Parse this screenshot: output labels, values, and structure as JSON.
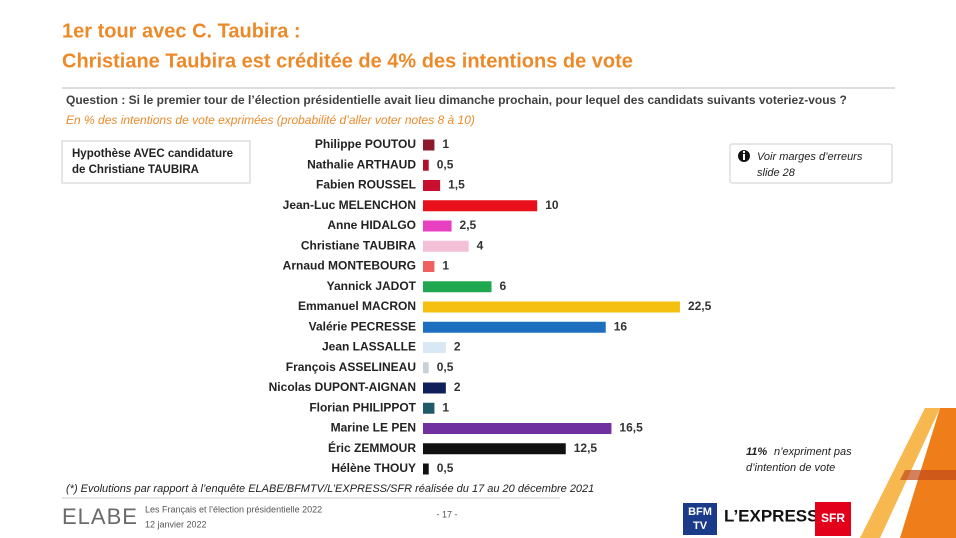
{
  "slide": {
    "title": [
      "1er tour avec C. Taubira :",
      "Christiane Taubira est créditée de 4% des intentions de vote"
    ],
    "question": "Question : Si le premier tour de l’élection présidentielle avait lieu dimanche prochain, pour lequel des candidats suivants voteriez-vous ?",
    "note": "En % des intentions de vote exprimées (probabilité d’aller voter notes 8 à 10)",
    "hypothesis": [
      "Hypothèse AVEC candidature",
      "de Christiane TAUBIRA"
    ],
    "margins_note": [
      "Voir marges d’erreurs",
      "slide 28"
    ],
    "abstention": {
      "share": "11%",
      "text": [
        "n’expriment pas",
        "d’intention de vote"
      ]
    },
    "footnote": "(*) Evolutions par rapport à l’enquête ELABE/BFMTV/L’EXPRESS/SFR réalisée du 17 au 20 décembre 2021",
    "footer": {
      "brand": "ELABE",
      "study": "Les Français et l’élection présidentielle 2022",
      "date": "12 janvier 2022",
      "page": "- 17 -",
      "logos": [
        "BFM",
        "TV",
        "L’EXPRESS",
        "SFR"
      ]
    }
  },
  "chart_data": {
    "type": "bar",
    "orientation": "horizontal",
    "categories": [
      "Philippe POUTOU",
      "Nathalie ARTHAUD",
      "Fabien ROUSSEL",
      "Jean-Luc MELENCHON",
      "Anne HIDALGO",
      "Christiane TAUBIRA",
      "Arnaud MONTEBOURG",
      "Yannick JADOT",
      "Emmanuel MACRON",
      "Valérie PECRESSE",
      "Jean LASSALLE",
      "François ASSELINEAU",
      "Nicolas DUPONT-AIGNAN",
      "Florian PHILIPPOT",
      "Marine LE PEN",
      "Éric ZEMMOUR",
      "Hélène THOUY"
    ],
    "values": [
      1,
      0.5,
      1.5,
      10,
      2.5,
      4,
      1,
      6,
      22.5,
      16,
      2,
      0.5,
      2,
      1,
      16.5,
      12.5,
      0.5
    ],
    "value_labels": [
      "1",
      "0,5",
      "1,5",
      "10",
      "2,5",
      "4",
      "1",
      "6",
      "22,5",
      "16",
      "2",
      "0,5",
      "2",
      "1",
      "16,5",
      "12,5",
      "0,5"
    ],
    "colors": [
      "#8b1a2b",
      "#b0102a",
      "#c8102e",
      "#e8101a",
      "#e840c0",
      "#f4c0d8",
      "#f06060",
      "#20a850",
      "#f5c010",
      "#1f6fc0",
      "#d8e8f5",
      "#c8d0d8",
      "#0f1f5a",
      "#1f5a68",
      "#7030a0",
      "#101010",
      "#101010"
    ]
  }
}
